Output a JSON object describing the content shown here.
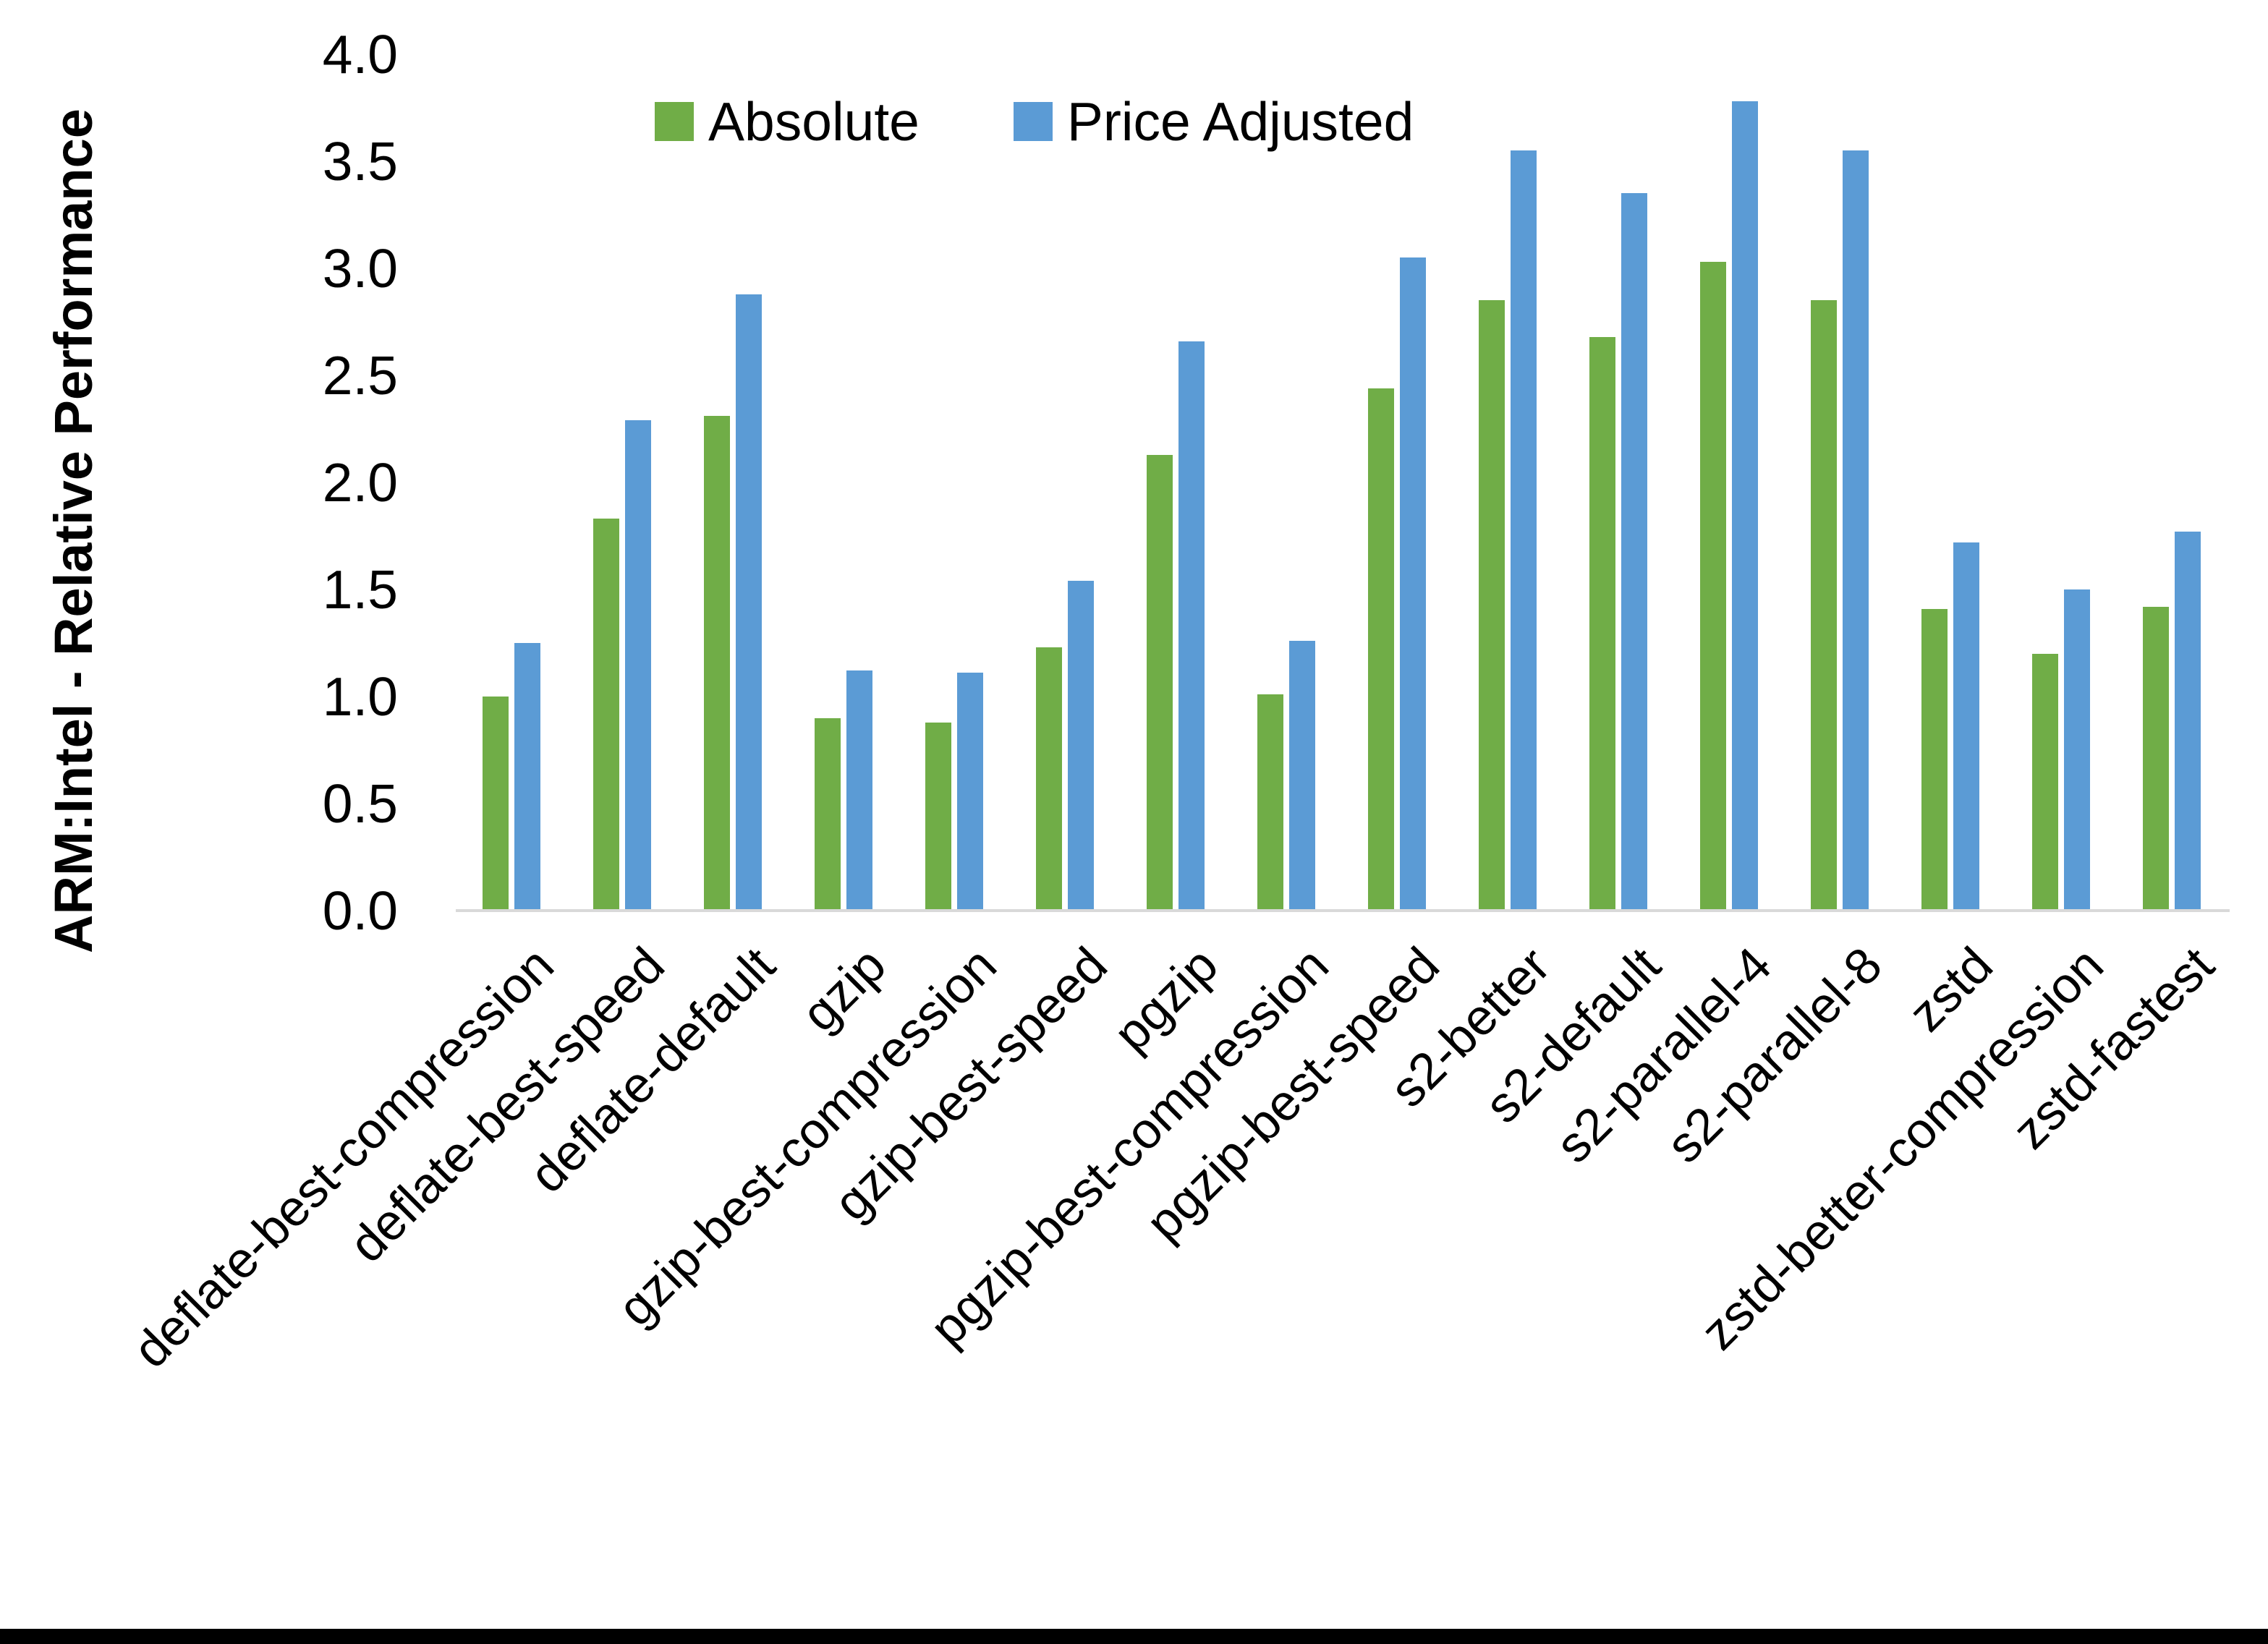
{
  "chart_data": {
    "type": "bar",
    "title": "",
    "ylabel": "ARM:Intel - Relative Performance",
    "xlabel": "",
    "ylim": [
      0.0,
      4.0
    ],
    "ytick_step": 0.5,
    "yticks": [
      "4.0",
      "3.5",
      "3.0",
      "2.5",
      "2.0",
      "1.5",
      "1.0",
      "0.5",
      "0.0"
    ],
    "grid": false,
    "legend_position": "top-center",
    "axis_line_color": "#D9D9D9",
    "categories": [
      "deflate-best-compression",
      "deflate-best-speed",
      "deflate-default",
      "gzip",
      "gzip-best-compression",
      "gzip-best-speed",
      "pgzip",
      "pgzip-best-compression",
      "pgzip-best-speed",
      "s2-better",
      "s2-default",
      "s2-parallel-4",
      "s2-parallel-8",
      "zstd",
      "zstd-better-compression",
      "zstd-fastest"
    ],
    "series": [
      {
        "name": "Absolute",
        "color": "#70AD47",
        "values": [
          1.0,
          1.83,
          2.31,
          0.9,
          0.88,
          1.23,
          2.13,
          1.01,
          2.44,
          2.85,
          2.68,
          3.03,
          2.85,
          1.41,
          1.2,
          1.42
        ]
      },
      {
        "name": "Price Adjusted",
        "color": "#5B9BD5",
        "values": [
          1.25,
          2.29,
          2.88,
          1.12,
          1.11,
          1.54,
          2.66,
          1.26,
          3.05,
          3.55,
          3.35,
          3.78,
          3.55,
          1.72,
          1.5,
          1.77
        ]
      }
    ]
  },
  "frame": {
    "bottom_border_color": "#000000"
  }
}
